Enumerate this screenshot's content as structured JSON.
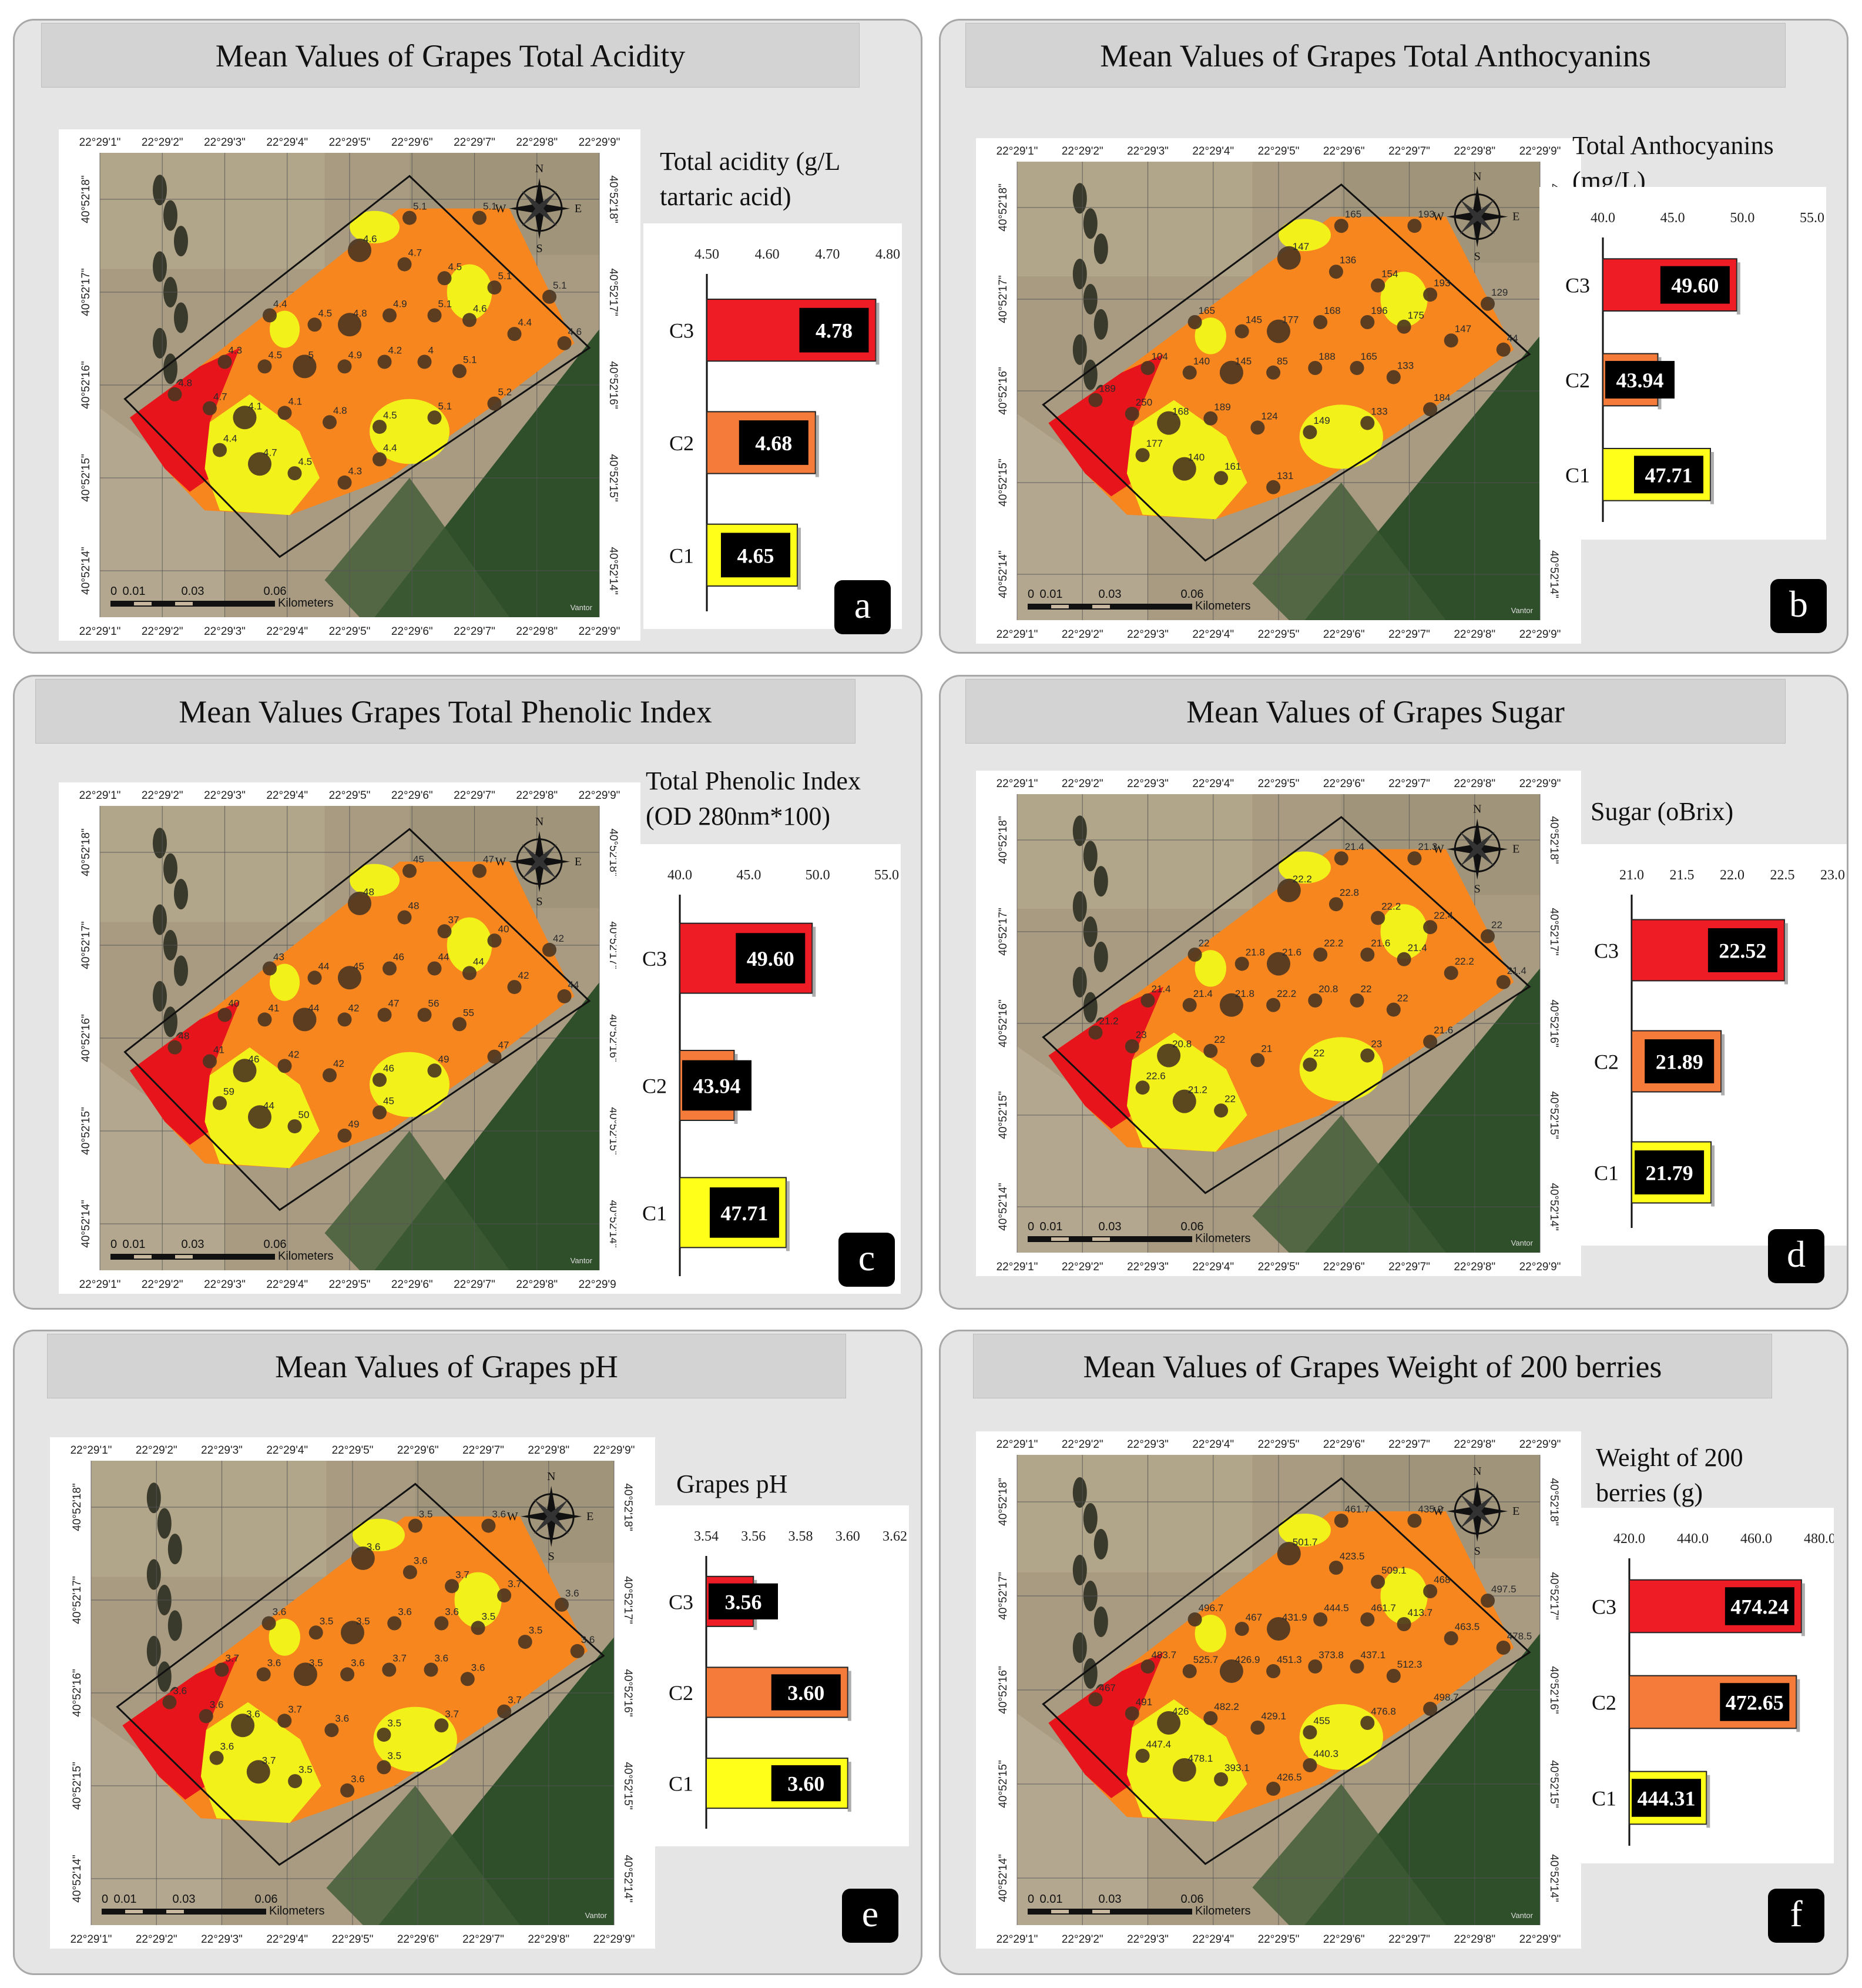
{
  "map": {
    "top_ticks": [
      "22°29'1\"",
      "22°29'2\"",
      "22°29'3\"",
      "22°29'4\"",
      "22°29'5\"",
      "22°29'6\"",
      "22°29'7\"",
      "22°29'8\"",
      "22°29'9\""
    ],
    "side_ticks": [
      "40°52'18\"",
      "40°52'17\"",
      "40°52'16\"",
      "40°52'15\"",
      "40°52'14\""
    ],
    "compass": {
      "n": "N",
      "s": "S",
      "e": "E",
      "w": "W"
    },
    "scale_ticks": [
      "0",
      "0.01",
      "0.03",
      "0.06"
    ],
    "scale_unit": "Kilometers",
    "credit": "Vantor",
    "colors": {
      "c3_zone": "#e8141b",
      "c2_zone": "#f7861f",
      "c1_zone": "#f2f21a",
      "sample_point": "#4a3520"
    }
  },
  "panels": [
    {
      "title": "Mean Values of Grapes Total Acidity",
      "badge": "a",
      "point_labels": [
        "5.1",
        "5.1",
        "4.6",
        "4.7",
        "4.5",
        "5.1",
        "5.1",
        "4.4",
        "4.5",
        "4.8",
        "4.9",
        "5.1",
        "4.6",
        "4.4",
        "4.6",
        "4.3",
        "4.5",
        "5",
        "4.9",
        "4.2",
        "4",
        "5.1",
        "4.8",
        "4.7",
        "4.1",
        "4.1",
        "4.8",
        "4.5",
        "5.1",
        "5.2",
        "4.4",
        "4.7",
        "4.5",
        "4.3",
        "4.4"
      ],
      "chart_label_lines": [
        "Total acidity (g/L",
        "tartaric acid)"
      ],
      "chart_data": {
        "type": "bar",
        "orientation": "horizontal",
        "categories": [
          "C3",
          "C2",
          "C1"
        ],
        "values": [
          4.78,
          4.68,
          4.65
        ],
        "value_labels": [
          "4.78",
          "4.68",
          "4.65"
        ],
        "xlim": [
          4.5,
          4.8
        ],
        "ticks": [
          "4.50",
          "4.60",
          "4.70",
          "4.80"
        ],
        "bar_colors": [
          "#ee1c24",
          "#f47b3a",
          "#ffff1a"
        ],
        "grid": false
      }
    },
    {
      "title": "Mean Values of Grapes Total Anthocyanins",
      "badge": "b",
      "point_labels": [
        "165",
        "193",
        "147",
        "136",
        "154",
        "193",
        "129",
        "165",
        "145",
        "177",
        "168",
        "196",
        "175",
        "147",
        "44",
        "104",
        "140",
        "145",
        "85",
        "188",
        "165",
        "133",
        "189",
        "250",
        "168",
        "189",
        "124",
        "149",
        "133",
        "184",
        "177",
        "140",
        "161",
        "131"
      ],
      "chart_label_lines": [
        "Total Anthocyanins",
        "(mg/L)"
      ],
      "chart_data": {
        "type": "bar",
        "orientation": "horizontal",
        "categories": [
          "C3",
          "C2",
          "C1"
        ],
        "values": [
          49.6,
          43.94,
          47.71
        ],
        "value_labels": [
          "49.60",
          "43.94",
          "47.71"
        ],
        "xlim": [
          40,
          55
        ],
        "ticks": [
          "40.0",
          "45.0",
          "50.0",
          "55.0"
        ],
        "bar_colors": [
          "#ee1c24",
          "#f47b3a",
          "#ffff1a"
        ],
        "grid": false
      }
    },
    {
      "title": "Mean Values Grapes Total Phenolic Index",
      "badge": "c",
      "point_labels": [
        "45",
        "47",
        "48",
        "48",
        "37",
        "40",
        "42",
        "43",
        "44",
        "45",
        "46",
        "44",
        "44",
        "42",
        "44",
        "40",
        "41",
        "44",
        "42",
        "47",
        "56",
        "55",
        "48",
        "41",
        "46",
        "42",
        "42",
        "46",
        "49",
        "47",
        "59",
        "44",
        "50",
        "49",
        "45"
      ],
      "chart_label_lines": [
        "Total Phenolic Index",
        "(OD 280nm*100)"
      ],
      "chart_data": {
        "type": "bar",
        "orientation": "horizontal",
        "categories": [
          "C3",
          "C2",
          "C1"
        ],
        "values": [
          49.6,
          43.94,
          47.71
        ],
        "value_labels": [
          "49.60",
          "43.94",
          "47.71"
        ],
        "xlim": [
          40,
          55
        ],
        "ticks": [
          "40.0",
          "45.0",
          "50.0",
          "55.0"
        ],
        "bar_colors": [
          "#ee1c24",
          "#f47b3a",
          "#ffff1a"
        ],
        "grid": false
      }
    },
    {
      "title": "Mean Values of Grapes Sugar",
      "badge": "d",
      "point_labels": [
        "21.4",
        "21.3",
        "22.2",
        "22.8",
        "22.2",
        "22.4",
        "22",
        "22",
        "21.8",
        "21.6",
        "22.2",
        "21.6",
        "21.4",
        "22.2",
        "21.4",
        "21.4",
        "21.4",
        "21.8",
        "22.2",
        "20.8",
        "22",
        "22",
        "21.2",
        "23",
        "20.8",
        "22",
        "21",
        "22",
        "23",
        "21.6",
        "22.6",
        "21.2",
        "22"
      ],
      "chart_label_lines": [
        "Sugar (oBrix)"
      ],
      "chart_data": {
        "type": "bar",
        "orientation": "horizontal",
        "categories": [
          "C3",
          "C2",
          "C1"
        ],
        "values": [
          22.52,
          21.89,
          21.79
        ],
        "value_labels": [
          "22.52",
          "21.89",
          "21.79"
        ],
        "xlim": [
          21.0,
          23.0
        ],
        "ticks": [
          "21.0",
          "21.5",
          "22.0",
          "22.5",
          "23.0"
        ],
        "bar_colors": [
          "#ee1c24",
          "#f47b3a",
          "#ffff1a"
        ],
        "grid": false
      }
    },
    {
      "title": "Mean Values of Grapes pH",
      "badge": "e",
      "point_labels": [
        "3.5",
        "3.6",
        "3.6",
        "3.6",
        "3.7",
        "3.7",
        "3.6",
        "3.6",
        "3.5",
        "3.5",
        "3.6",
        "3.6",
        "3.5",
        "3.5",
        "3.6",
        "3.7",
        "3.6",
        "3.5",
        "3.6",
        "3.7",
        "3.6",
        "3.6",
        "3.6",
        "3.6",
        "3.6",
        "3.7",
        "3.6",
        "3.5",
        "3.7",
        "3.7",
        "3.6",
        "3.7",
        "3.5",
        "3.6",
        "3.5"
      ],
      "chart_label_lines": [
        "Grapes pH"
      ],
      "chart_data": {
        "type": "bar",
        "orientation": "horizontal",
        "categories": [
          "C3",
          "C2",
          "C1"
        ],
        "values": [
          3.56,
          3.6,
          3.6
        ],
        "value_labels": [
          "3.56",
          "3.60",
          "3.60"
        ],
        "xlim": [
          3.54,
          3.62
        ],
        "ticks": [
          "3.54",
          "3.56",
          "3.58",
          "3.60",
          "3.62"
        ],
        "bar_colors": [
          "#ee1c24",
          "#f47b3a",
          "#ffff1a"
        ],
        "grid": false
      }
    },
    {
      "title": "Mean Values of Grapes Weight of 200 berries",
      "badge": "f",
      "point_labels": [
        "461.7",
        "435.2",
        "501.7",
        "423.5",
        "509.1",
        "468",
        "497.5",
        "496.7",
        "467",
        "431.9",
        "444.5",
        "461.7",
        "413.7",
        "463.5",
        "478.5",
        "483.7",
        "525.7",
        "426.9",
        "451.3",
        "373.8",
        "437.1",
        "512.3",
        "467",
        "491",
        "426",
        "482.2",
        "429.1",
        "455",
        "476.8",
        "498.7",
        "447.4",
        "478.1",
        "393.1",
        "426.5",
        "440.3"
      ],
      "chart_label_lines": [
        "Weight of 200",
        "berries (g)"
      ],
      "chart_data": {
        "type": "bar",
        "orientation": "horizontal",
        "categories": [
          "C3",
          "C2",
          "C1"
        ],
        "values": [
          474.24,
          472.65,
          444.31
        ],
        "value_labels": [
          "474.24",
          "472.65",
          "444.31"
        ],
        "xlim": [
          420,
          480
        ],
        "ticks": [
          "420.0",
          "440.0",
          "460.0",
          "480.0"
        ],
        "bar_colors": [
          "#ee1c24",
          "#f47b3a",
          "#ffff1a"
        ],
        "grid": false
      }
    }
  ]
}
